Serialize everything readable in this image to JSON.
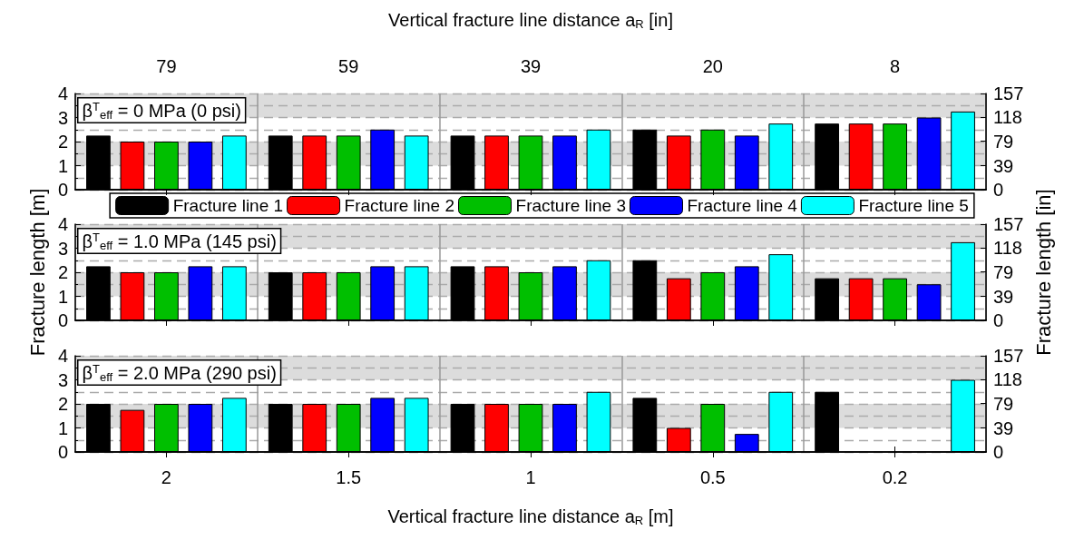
{
  "chart_data": [
    {
      "type": "bar",
      "categories": [
        "2",
        "1.5",
        "1",
        "0.5",
        "0.2"
      ],
      "x2label": "Vertical fracture line distance a$_{R}$ [in]",
      "annotations": [
        "β$^{T}$$_{eff}$ = 0 MPa (0 psi)",
        "79",
        "59",
        "39",
        "20",
        "8"
      ],
      "ylim": [
        0,
        4
      ],
      "yticks": [
        0,
        1,
        2,
        3,
        4
      ],
      "y2lim": [
        0,
        157
      ],
      "y2ticks": [
        0,
        39,
        79,
        118,
        157
      ],
      "grid": true,
      "legend": "bottom",
      "tick_labels": "y",
      "bands": [
        {
          "axis": "y",
          "from": 1,
          "to": 2,
          "color": "#dcdcdc"
        },
        {
          "axis": "y",
          "from": 3,
          "to": 4,
          "color": "#dcdcdc"
        }
      ],
      "series": [
        {
          "name": "Fracture line 1",
          "color": "#000000",
          "values": [
            2.25,
            2.25,
            2.25,
            2.5,
            2.75
          ]
        },
        {
          "name": "Fracture line 2",
          "color": "#ff0000",
          "values": [
            2,
            2.25,
            2.25,
            2.25,
            2.75
          ]
        },
        {
          "name": "Fracture line 3",
          "color": "#00bf00",
          "values": [
            2,
            2.25,
            2.25,
            2.5,
            2.75
          ]
        },
        {
          "name": "Fracture line 4",
          "color": "#0000ff",
          "values": [
            2,
            2.5,
            2.25,
            2.25,
            3
          ]
        },
        {
          "name": "Fracture line 5",
          "color": "#00ffff",
          "values": [
            2.25,
            2.25,
            2.5,
            2.75,
            3.25
          ]
        }
      ]
    },
    {
      "type": "bar",
      "categories": [
        "2",
        "1.5",
        "1",
        "0.5",
        "0.2"
      ],
      "ylabel": "Fracture length [m]",
      "y2label": "Fracture length [in]",
      "annotations": [
        "β$^{T}$$_{eff}$ = 1.0 MPa (145 psi)"
      ],
      "ylim": [
        0,
        4
      ],
      "yticks": [
        0,
        1,
        2,
        3,
        4
      ],
      "y2lim": [
        0,
        157
      ],
      "y2ticks": [
        0,
        39,
        79,
        118,
        157
      ],
      "grid": true,
      "tick_labels": "y",
      "bands": [
        {
          "axis": "y",
          "from": 1,
          "to": 2,
          "color": "#dcdcdc"
        },
        {
          "axis": "y",
          "from": 3,
          "to": 4,
          "color": "#dcdcdc"
        }
      ],
      "series": [
        {
          "color": "#000000",
          "values": [
            2.25,
            2,
            2.25,
            2.5,
            1.75
          ]
        },
        {
          "color": "#ff0000",
          "values": [
            2,
            2,
            2.25,
            1.75,
            1.75
          ]
        },
        {
          "color": "#00bf00",
          "values": [
            2,
            2,
            2,
            2,
            1.75
          ]
        },
        {
          "color": "#0000ff",
          "values": [
            2.25,
            2.25,
            2.25,
            2.25,
            1.5
          ]
        },
        {
          "color": "#00ffff",
          "values": [
            2.25,
            2.25,
            2.5,
            2.75,
            3.25
          ]
        }
      ]
    },
    {
      "type": "bar",
      "categories": [
        "2",
        "1.5",
        "1",
        "0.5",
        "0.2"
      ],
      "xlabel": "Vertical fracture line distance a$_{R}$ [m]",
      "annotations": [
        "β$^{T}$$_{eff}$ = 2.0 MPa (290 psi)"
      ],
      "ylim": [
        0,
        4
      ],
      "yticks": [
        0,
        1,
        2,
        3,
        4
      ],
      "y2lim": [
        0,
        157
      ],
      "y2ticks": [
        0,
        39,
        79,
        118,
        157
      ],
      "grid": true,
      "bands": [
        {
          "axis": "y",
          "from": 1,
          "to": 2,
          "color": "#dcdcdc"
        },
        {
          "axis": "y",
          "from": 3,
          "to": 4,
          "color": "#dcdcdc"
        }
      ],
      "series": [
        {
          "color": "#000000",
          "values": [
            2,
            2,
            2,
            2.25,
            2.5
          ]
        },
        {
          "color": "#ff0000",
          "values": [
            1.75,
            2,
            2,
            1,
            null
          ]
        },
        {
          "color": "#00bf00",
          "values": [
            2,
            2,
            2,
            2,
            null
          ]
        },
        {
          "color": "#0000ff",
          "values": [
            2,
            2.25,
            2,
            0.75,
            null
          ]
        },
        {
          "color": "#00ffff",
          "values": [
            2.25,
            2.25,
            2.5,
            2.5,
            3
          ]
        }
      ]
    }
  ]
}
